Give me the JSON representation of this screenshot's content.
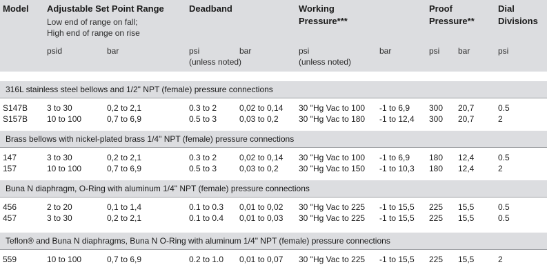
{
  "headers": {
    "model": "Model",
    "range_title": "Adjustable Set Point Range",
    "range_sub1": "Low end of range on fall;",
    "range_sub2": "High end of range on rise",
    "deadband": "Deadband",
    "working1": "Working",
    "working2": "Pressure***",
    "proof1": "Proof",
    "proof2": "Pressure**",
    "dial1": "Dial",
    "dial2": "Divisions"
  },
  "units": {
    "psid": "psid",
    "bar1": "bar",
    "psi1": "psi",
    "unless1": "(unless noted)",
    "bar2": "bar",
    "psi2": "psi",
    "unless2": "(unless noted)",
    "bar3": "bar",
    "psi3": "psi",
    "bar4": "bar",
    "psi4": "psi"
  },
  "sections": [
    {
      "title": "316L stainless steel bellows and 1/2\" NPT (female) pressure connections",
      "rows": [
        [
          "S147B",
          "3 to 30",
          "0,2 to 2,1",
          "0.3 to 2",
          "0,02 to 0,14",
          "30 \"Hg Vac to 100",
          "-1 to 6,9",
          "300",
          "20,7",
          "0.5"
        ],
        [
          "S157B",
          "10 to 100",
          "0,7 to 6,9",
          "0.5 to 3",
          "0,03 to 0,2",
          "30 \"Hg Vac to 180",
          "-1 to 12,4",
          "300",
          "20,7",
          "2"
        ]
      ]
    },
    {
      "title": "Brass bellows with nickel-plated brass 1/4\" NPT (female) pressure connections",
      "rows": [
        [
          "147",
          "3 to 30",
          "0,2 to 2,1",
          "0.3 to 2",
          "0,02 to 0,14",
          "30 \"Hg Vac to 100",
          "-1 to 6,9",
          "180",
          "12,4",
          "0.5"
        ],
        [
          "157",
          "10 to 100",
          "0,7 to 6,9",
          "0.5 to 3",
          "0,03 to 0,2",
          "30 \"Hg Vac to 150",
          "-1 to 10,3",
          "180",
          "12,4",
          "2"
        ]
      ]
    },
    {
      "title": "Buna N diaphragm, O-Ring with aluminum 1/4\" NPT (female)  pressure connections",
      "rows": [
        [
          "456",
          "2 to 20",
          "0,1 to 1,4",
          "0.1 to 0.3",
          "0,01 to 0,02",
          "30 \"Hg Vac to 225",
          "-1 to 15,5",
          "225",
          "15,5",
          "0.5"
        ],
        [
          "457",
          "3 to 30",
          "0,2 to 2,1",
          "0.1 to 0.4",
          "0,01 to 0,03",
          "30 \"Hg Vac to 225",
          "-1 to 15,5",
          "225",
          "15,5",
          "0.5"
        ]
      ]
    },
    {
      "title": "Teflon® and Buna N diaphragms, Buna N O-Ring with aluminum 1/4\" NPT (female)  pressure connections",
      "rows": [
        [
          "559",
          "10 to 100",
          "0,7 to 6,9",
          "0.2 to 1.0",
          "0,01 to 0,07",
          "30 \"Hg Vac to 225",
          "-1 to 15,5",
          "225",
          "15,5",
          "2"
        ]
      ]
    }
  ]
}
